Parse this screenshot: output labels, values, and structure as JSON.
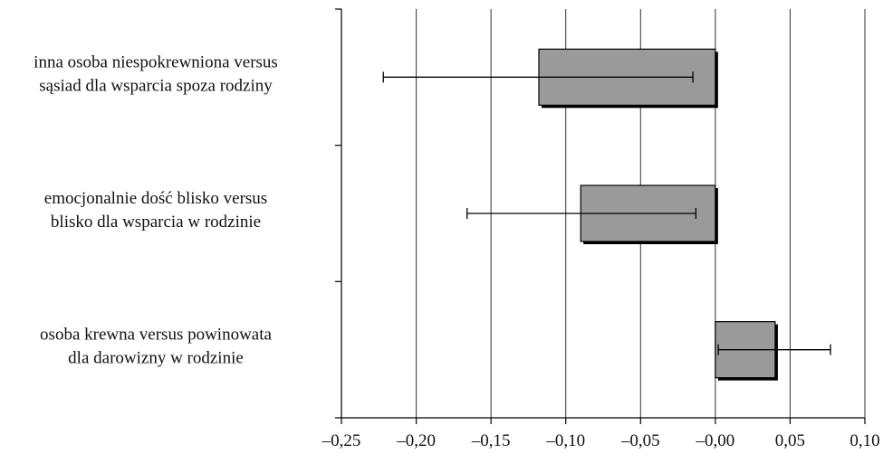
{
  "chart_data": {
    "type": "bar",
    "orientation": "horizontal",
    "title": "",
    "xlabel": "",
    "ylabel": "",
    "xlim": [
      -0.25,
      0.1
    ],
    "x_ticks": [
      -0.25,
      -0.2,
      -0.15,
      -0.1,
      -0.05,
      0.0,
      0.05,
      0.1
    ],
    "x_tick_labels": [
      "–0,25",
      "–0,20",
      "–0,15",
      "–0,10",
      "–0,05",
      "–0,00",
      "0,05",
      "0,10"
    ],
    "grid": "vertical",
    "legend": "none",
    "bar_color": "#9a9a9a",
    "categories": [
      [
        "inna osoba niespokrewniona versus",
        "sąsiad dla wsparcia spoza rodziny"
      ],
      [
        "emocjonalnie dość blisko versus",
        "blisko dla wsparcia w rodzinie"
      ],
      [
        "osoba krewna versus powinowata",
        "dla darowizny w rodzinie"
      ]
    ],
    "values": [
      -0.118,
      -0.09,
      0.04
    ],
    "error_low": [
      -0.222,
      -0.166,
      0.002
    ],
    "error_high": [
      -0.015,
      -0.013,
      0.077
    ]
  }
}
